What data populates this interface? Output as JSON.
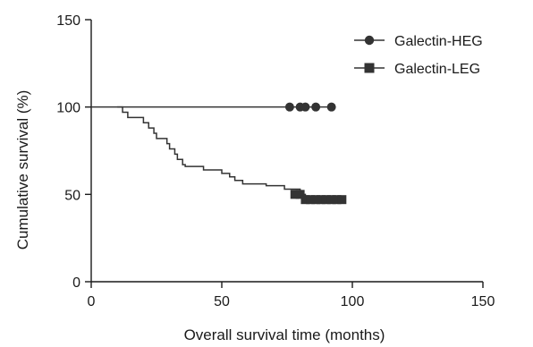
{
  "chart_data": {
    "type": "line",
    "title": "",
    "xlabel": "Overall survival time (months)",
    "ylabel": "Cumulative survival (%)",
    "xlim": [
      0,
      150
    ],
    "ylim": [
      0,
      150
    ],
    "xticks": [
      "0",
      "50",
      "100",
      "150"
    ],
    "yticks": [
      "0",
      "50",
      "100",
      "150"
    ],
    "grid": false,
    "legend_position": "top-right",
    "series": [
      {
        "name": "Galectin-HEG",
        "marker": "circle",
        "color": "#333333",
        "steps": [
          [
            0,
            100
          ],
          [
            92,
            100
          ]
        ],
        "censored": [
          [
            76,
            100
          ],
          [
            80,
            100
          ],
          [
            82,
            100
          ],
          [
            86,
            100
          ],
          [
            92,
            100
          ]
        ]
      },
      {
        "name": "Galectin-LEG",
        "marker": "square",
        "color": "#333333",
        "steps": [
          [
            10,
            100
          ],
          [
            12,
            97
          ],
          [
            14,
            94
          ],
          [
            19,
            94
          ],
          [
            20,
            91
          ],
          [
            22,
            88
          ],
          [
            24,
            85
          ],
          [
            25,
            82
          ],
          [
            29,
            79
          ],
          [
            30,
            76
          ],
          [
            32,
            73
          ],
          [
            33,
            70
          ],
          [
            35,
            67
          ],
          [
            36,
            66
          ],
          [
            43,
            64
          ],
          [
            50,
            62
          ],
          [
            53,
            60
          ],
          [
            55,
            58
          ],
          [
            58,
            56
          ],
          [
            67,
            55
          ],
          [
            73,
            55
          ],
          [
            74,
            53
          ],
          [
            80,
            50
          ],
          [
            82,
            47
          ],
          [
            97,
            47
          ]
        ],
        "censored": [
          [
            78,
            50
          ],
          [
            80,
            50
          ],
          [
            82,
            47
          ],
          [
            84,
            47
          ],
          [
            86,
            47
          ],
          [
            88,
            47
          ],
          [
            90,
            47
          ],
          [
            92,
            47
          ],
          [
            94,
            47
          ],
          [
            96,
            47
          ]
        ]
      }
    ]
  }
}
